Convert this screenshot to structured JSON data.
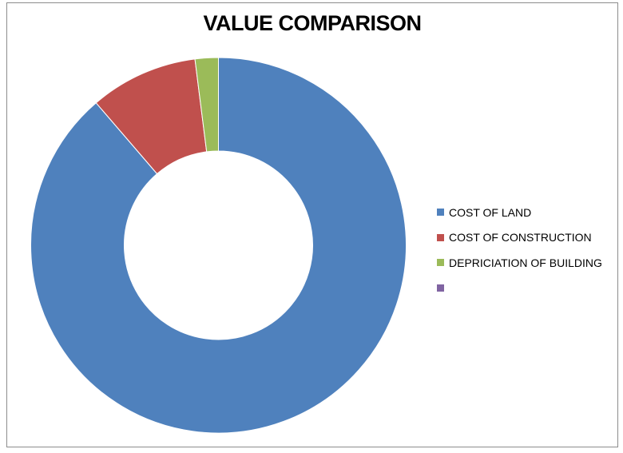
{
  "chart_data": {
    "type": "pie",
    "variant": "donut",
    "title": "VALUE COMPARISON",
    "legend_position": "right",
    "categories": [
      "COST OF LAND",
      "COST OF CONSTRUCTION",
      "DEPRICIATION OF BUILDING",
      ""
    ],
    "values": [
      88.7,
      9.3,
      2.0,
      0
    ],
    "colors": [
      "#4f81bd",
      "#c0504d",
      "#9bbb59",
      "#8064a2"
    ]
  }
}
